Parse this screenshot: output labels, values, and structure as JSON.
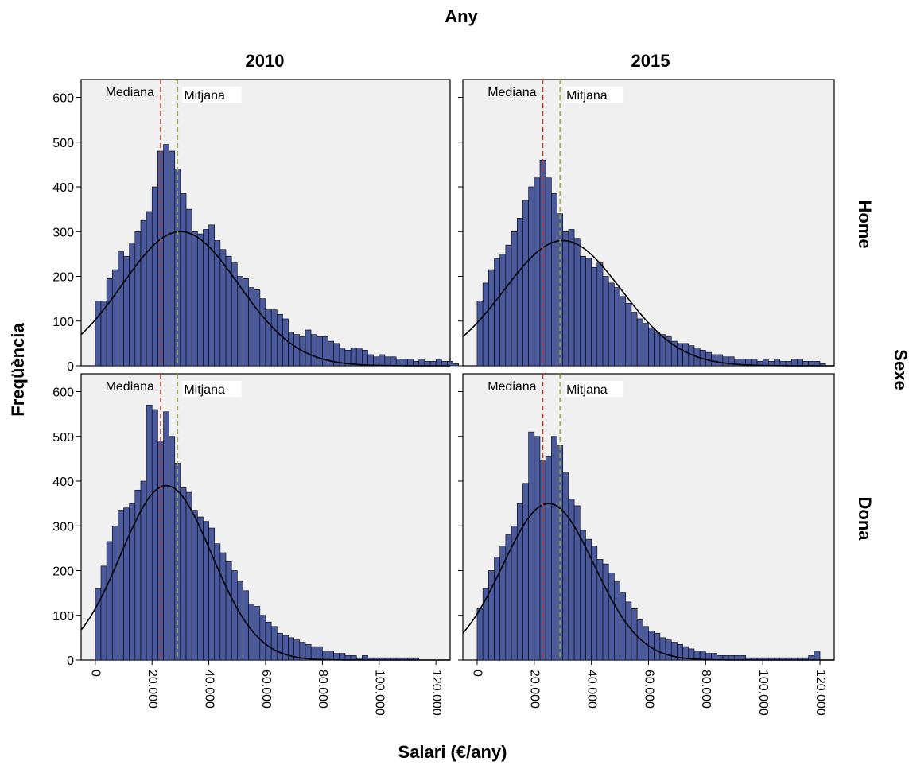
{
  "chart_data": {
    "type": "histogram-panel-grid",
    "column_facet_title": "Any",
    "row_facet_title": "Sexe",
    "xlabel": "Salari (€/any)",
    "ylabel": "Freqüència",
    "columns": [
      "2010",
      "2015"
    ],
    "rows": [
      "Home",
      "Dona"
    ],
    "xlim": [
      -5000,
      125000
    ],
    "ylim": [
      0,
      640
    ],
    "x_ticks": [
      0,
      20000,
      40000,
      60000,
      80000,
      100000,
      120000
    ],
    "x_tick_labels": [
      "0",
      "20.000",
      "40.000",
      "60.000",
      "80.000",
      "100.000",
      "120.000"
    ],
    "y_ticks": [
      0,
      100,
      200,
      300,
      400,
      500,
      600
    ],
    "y_tick_labels": [
      "0",
      "100",
      "200",
      "300",
      "400",
      "500",
      "600"
    ],
    "bin_width": 2000,
    "bin_start": 0,
    "grid": false,
    "colors": {
      "bars": "#4a5a9c",
      "median_line": "#c0392b",
      "mean_line": "#9aad2e",
      "median_text": "#b03a2e",
      "mean_text": "#8a9a1e",
      "panel_bg": "#f0f0f0"
    },
    "reference_line_labels": {
      "median": "Mediana",
      "mean": "Mitjana"
    },
    "panels": [
      {
        "column": "2010",
        "row": "Home",
        "median": 23000,
        "mean": 29000,
        "normal_curve": {
          "mean": 30000,
          "sd": 20500,
          "peak": 300
        },
        "frequencies": [
          145,
          145,
          195,
          215,
          255,
          245,
          275,
          300,
          325,
          345,
          400,
          480,
          495,
          480,
          440,
          385,
          350,
          300,
          295,
          305,
          315,
          280,
          260,
          245,
          230,
          200,
          195,
          175,
          170,
          150,
          125,
          125,
          115,
          105,
          75,
          70,
          65,
          80,
          70,
          65,
          65,
          55,
          50,
          40,
          35,
          40,
          40,
          35,
          25,
          20,
          25,
          20,
          20,
          15,
          15,
          15,
          10,
          15,
          10,
          10,
          15,
          10,
          10,
          5
        ]
      },
      {
        "column": "2015",
        "row": "Home",
        "median": 23000,
        "mean": 29000,
        "normal_curve": {
          "mean": 30000,
          "sd": 20500,
          "peak": 280
        },
        "frequencies": [
          145,
          185,
          215,
          240,
          250,
          270,
          300,
          330,
          370,
          400,
          420,
          460,
          420,
          385,
          340,
          300,
          305,
          285,
          245,
          240,
          220,
          230,
          200,
          185,
          175,
          155,
          140,
          120,
          105,
          95,
          85,
          75,
          70,
          65,
          55,
          50,
          50,
          45,
          40,
          35,
          30,
          25,
          25,
          20,
          20,
          15,
          15,
          15,
          15,
          10,
          15,
          10,
          15,
          10,
          10,
          15,
          15,
          10,
          10,
          10,
          5
        ]
      },
      {
        "column": "2010",
        "row": "Dona",
        "median": 23000,
        "mean": 29000,
        "normal_curve": {
          "mean": 25000,
          "sd": 16000,
          "peak": 390
        },
        "frequencies": [
          160,
          210,
          265,
          300,
          335,
          340,
          350,
          380,
          400,
          570,
          560,
          490,
          555,
          500,
          440,
          385,
          375,
          335,
          320,
          310,
          295,
          260,
          240,
          220,
          200,
          175,
          155,
          125,
          120,
          100,
          85,
          75,
          60,
          55,
          50,
          45,
          40,
          35,
          30,
          30,
          20,
          20,
          15,
          15,
          10,
          10,
          5,
          10,
          5,
          5,
          5,
          5,
          5,
          5,
          5,
          5,
          5
        ]
      },
      {
        "column": "2015",
        "row": "Dona",
        "median": 23000,
        "mean": 29000,
        "normal_curve": {
          "mean": 25000,
          "sd": 16000,
          "peak": 350
        },
        "frequencies": [
          115,
          160,
          200,
          230,
          255,
          280,
          300,
          350,
          395,
          510,
          500,
          445,
          455,
          500,
          480,
          420,
          360,
          345,
          290,
          270,
          255,
          225,
          215,
          195,
          175,
          150,
          130,
          115,
          90,
          75,
          65,
          60,
          50,
          45,
          40,
          35,
          30,
          25,
          20,
          20,
          15,
          15,
          10,
          10,
          10,
          10,
          10,
          5,
          5,
          5,
          5,
          5,
          5,
          5,
          5,
          5,
          5,
          5,
          10,
          20
        ]
      }
    ]
  }
}
